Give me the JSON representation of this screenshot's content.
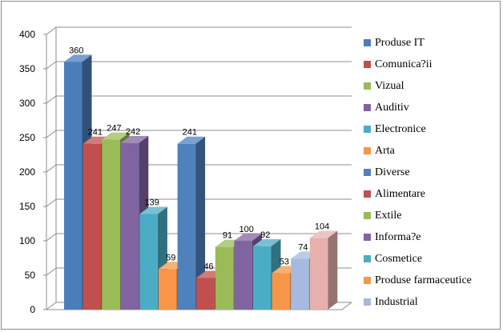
{
  "chart_data": {
    "type": "bar",
    "title": "",
    "xlabel": "",
    "ylabel": "",
    "ylim": [
      0,
      400
    ],
    "yticks": [
      "0",
      "50",
      "100",
      "150",
      "200",
      "250",
      "300",
      "350",
      "400"
    ],
    "grid": true,
    "legend_position": "right",
    "series": [
      {
        "name": "Produse IT",
        "value": 360,
        "color": "#4a7ebb"
      },
      {
        "name": "Comunica?ii",
        "value": 241,
        "color": "#c0504d"
      },
      {
        "name": "Vizual",
        "value": 247,
        "color": "#9bbb59"
      },
      {
        "name": "Auditiv",
        "value": 242,
        "color": "#8064a2"
      },
      {
        "name": "Electronice",
        "value": 139,
        "color": "#4bacc6"
      },
      {
        "name": "Arta",
        "value": 59,
        "color": "#f79646"
      },
      {
        "name": "Diverse",
        "value": 241,
        "color": "#4f81bd"
      },
      {
        "name": "Alimentare",
        "value": 46,
        "color": "#c0504d"
      },
      {
        "name": "Extile",
        "value": 91,
        "color": "#9bbb59"
      },
      {
        "name": "Informa?e",
        "value": 100,
        "color": "#8064a2"
      },
      {
        "name": "Cosmetice",
        "value": 92,
        "color": "#4bacc6"
      },
      {
        "name": "Produse farmaceutice",
        "value": 53,
        "color": "#f79646"
      },
      {
        "name": "Industrial",
        "value": 74,
        "color": "#a7b9de"
      },
      {
        "name": "",
        "value": 104,
        "color": "#e6b1ad"
      }
    ]
  }
}
